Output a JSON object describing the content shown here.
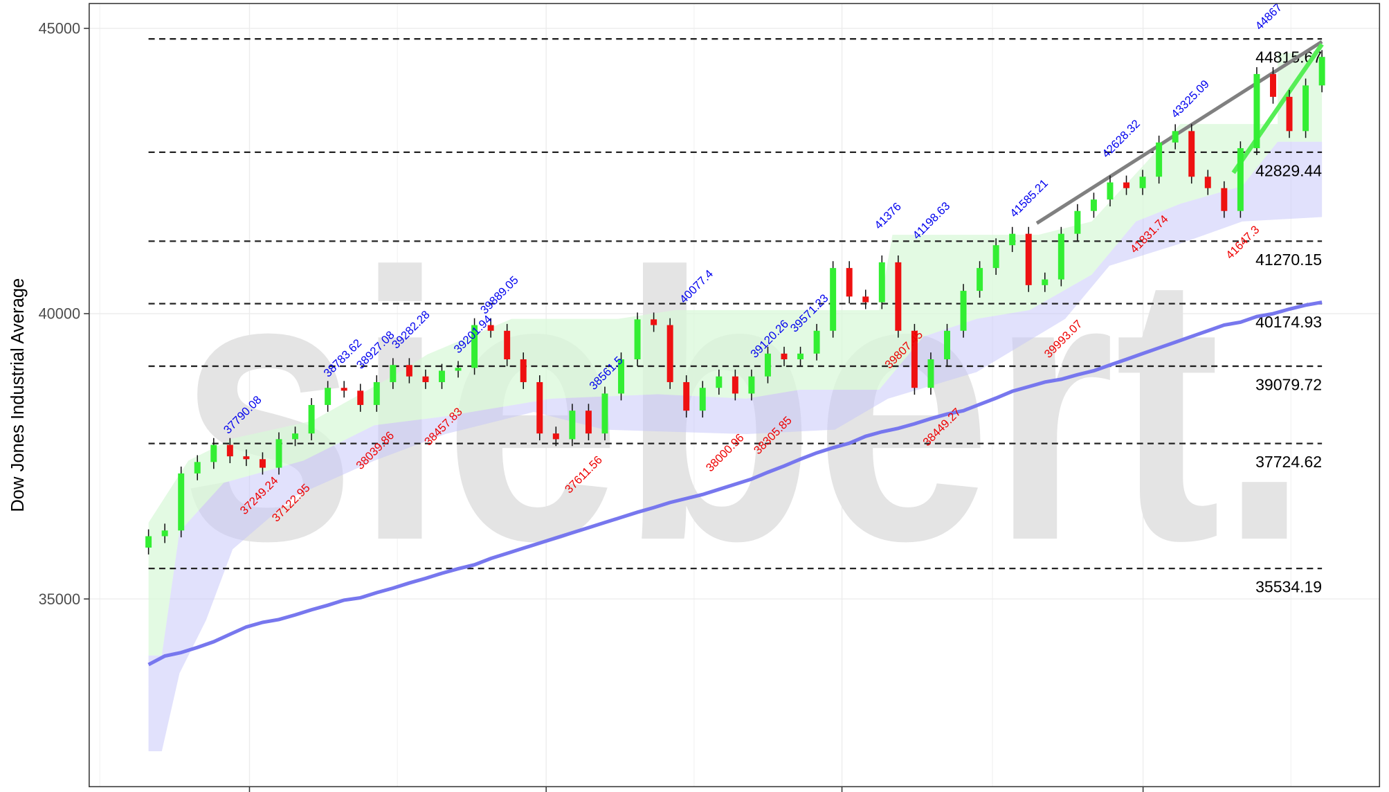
{
  "chart_data": {
    "type": "candlestick",
    "watermark": "siebert.",
    "y_label": "Dow Jones Industrial Average",
    "ylim": [
      31710,
      45435
    ],
    "yticks": [
      35000,
      40000,
      45000
    ],
    "grid": true,
    "up_color": "#33ee33",
    "down_color": "#ee1111",
    "ma_color": "#7777ee",
    "peak_color": "#0000ee",
    "trough_color": "#ee0000",
    "ohlc": [
      [
        35900,
        36220,
        35780,
        36100
      ],
      [
        36100,
        36320,
        35980,
        36200
      ],
      [
        36200,
        37320,
        36080,
        37200
      ],
      [
        37200,
        37520,
        37080,
        37400
      ],
      [
        37400,
        37820,
        37280,
        37700
      ],
      [
        37700,
        37820,
        37380,
        37500
      ],
      [
        37500,
        37620,
        37330,
        37450
      ],
      [
        37450,
        37570,
        37180,
        37300
      ],
      [
        37300,
        37920,
        37180,
        37800
      ],
      [
        37800,
        38020,
        37680,
        37900
      ],
      [
        37900,
        38520,
        37780,
        38400
      ],
      [
        38400,
        38820,
        38280,
        38700
      ],
      [
        38700,
        38820,
        38530,
        38650
      ],
      [
        38650,
        38770,
        38280,
        38400
      ],
      [
        38400,
        38920,
        38280,
        38800
      ],
      [
        38800,
        39220,
        38680,
        39100
      ],
      [
        39100,
        39220,
        38780,
        38900
      ],
      [
        38900,
        39020,
        38680,
        38800
      ],
      [
        38800,
        39120,
        38680,
        39000
      ],
      [
        39000,
        39170,
        38880,
        39050
      ],
      [
        39050,
        39920,
        38930,
        39800
      ],
      [
        39800,
        39920,
        39580,
        39700
      ],
      [
        39700,
        39820,
        39080,
        39200
      ],
      [
        39200,
        39320,
        38680,
        38800
      ],
      [
        38800,
        38920,
        37780,
        37900
      ],
      [
        37900,
        38020,
        37680,
        37800
      ],
      [
        37800,
        38420,
        37680,
        38300
      ],
      [
        38300,
        38420,
        37780,
        37900
      ],
      [
        37900,
        38720,
        37780,
        38600
      ],
      [
        38600,
        39320,
        38480,
        39200
      ],
      [
        39200,
        40020,
        39080,
        39900
      ],
      [
        39900,
        40020,
        39680,
        39800
      ],
      [
        39800,
        39920,
        38680,
        38800
      ],
      [
        38800,
        38920,
        38180,
        38300
      ],
      [
        38300,
        38820,
        38180,
        38700
      ],
      [
        38700,
        39020,
        38580,
        38900
      ],
      [
        38900,
        39020,
        38480,
        38600
      ],
      [
        38600,
        39020,
        38480,
        38900
      ],
      [
        38900,
        39420,
        38780,
        39300
      ],
      [
        39300,
        39420,
        39080,
        39200
      ],
      [
        39200,
        39420,
        39080,
        39300
      ],
      [
        39300,
        39820,
        39180,
        39700
      ],
      [
        39700,
        40920,
        39580,
        40800
      ],
      [
        40800,
        40920,
        40180,
        40300
      ],
      [
        40300,
        40420,
        40080,
        40200
      ],
      [
        40200,
        41020,
        40080,
        40900
      ],
      [
        40900,
        41020,
        39580,
        39700
      ],
      [
        39700,
        39820,
        38580,
        38700
      ],
      [
        38700,
        39320,
        38580,
        39200
      ],
      [
        39200,
        39820,
        39080,
        39700
      ],
      [
        39700,
        40520,
        39580,
        40400
      ],
      [
        40400,
        40920,
        40280,
        40800
      ],
      [
        40800,
        41320,
        40680,
        41200
      ],
      [
        41200,
        41520,
        41080,
        41400
      ],
      [
        41400,
        41520,
        40380,
        40500
      ],
      [
        40500,
        40720,
        40380,
        40600
      ],
      [
        40600,
        41520,
        40480,
        41400
      ],
      [
        41400,
        41920,
        41280,
        41800
      ],
      [
        41800,
        42120,
        41680,
        42000
      ],
      [
        42000,
        42420,
        41880,
        42300
      ],
      [
        42300,
        42420,
        42080,
        42200
      ],
      [
        42200,
        42520,
        42080,
        42400
      ],
      [
        42400,
        43120,
        42280,
        43000
      ],
      [
        43000,
        43320,
        42880,
        43200
      ],
      [
        43200,
        43320,
        42280,
        42400
      ],
      [
        42400,
        42520,
        42080,
        42200
      ],
      [
        42200,
        42320,
        41680,
        41800
      ],
      [
        41800,
        43020,
        41680,
        42900
      ],
      [
        42900,
        44320,
        42780,
        44200
      ],
      [
        44200,
        44320,
        43680,
        43800
      ],
      [
        43800,
        43920,
        43080,
        43200
      ],
      [
        43200,
        44120,
        43080,
        44000
      ],
      [
        44000,
        44620,
        43880,
        44500
      ]
    ],
    "moving_average": [
      33850,
      34000,
      34060,
      34150,
      34250,
      34380,
      34510,
      34590,
      34640,
      34720,
      34810,
      34890,
      34980,
      35020,
      35110,
      35190,
      35280,
      35360,
      35450,
      35530,
      35600,
      35710,
      35800,
      35890,
      35980,
      36070,
      36160,
      36250,
      36340,
      36430,
      36520,
      36600,
      36690,
      36760,
      36830,
      36920,
      37010,
      37100,
      37220,
      37330,
      37450,
      37560,
      37650,
      37730,
      37850,
      37930,
      37990,
      38070,
      38160,
      38240,
      38300,
      38410,
      38520,
      38640,
      38720,
      38800,
      38850,
      38930,
      39000,
      39100,
      39200,
      39300,
      39400,
      39500,
      39600,
      39700,
      39800,
      39850,
      39950,
      40000,
      40080,
      40150,
      40200
    ],
    "levels": [
      44815.67,
      42829.44,
      41270.15,
      40174.93,
      39079.72,
      37724.62,
      35534.19
    ],
    "peaks": [
      37790.08,
      38783.62,
      38927.08,
      39282.28,
      39201.94,
      39889.05,
      38561.5,
      40077.4,
      39120.26,
      39571.23,
      41376,
      41198.63,
      41585.21,
      42628.32,
      43325.09,
      44867
    ],
    "troughs": [
      37249.24,
      37122.95,
      38039.86,
      38457.83,
      37611.56,
      38000.96,
      38305.85,
      39807.45,
      38449.27,
      39993.07,
      41831.74,
      41647.3
    ]
  }
}
